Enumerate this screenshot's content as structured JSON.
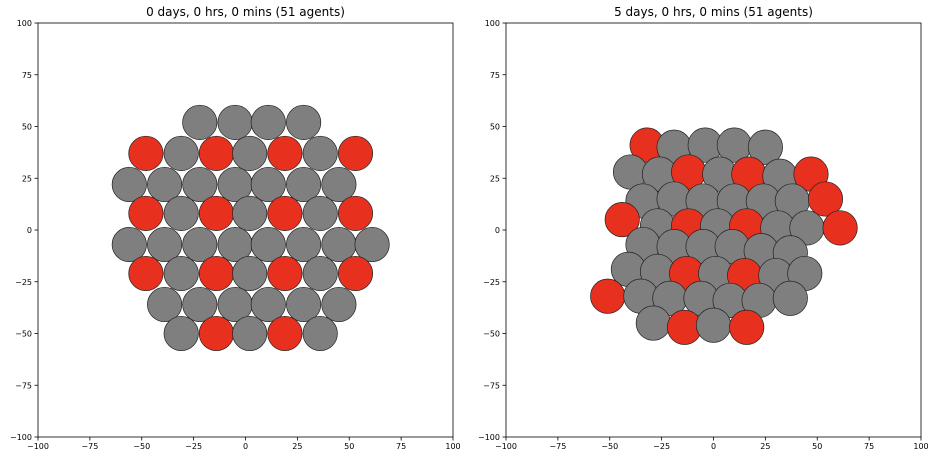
{
  "figure": {
    "colors": {
      "healthy": "#7f7f7f",
      "infected": "#e8301f",
      "edge": "#222222"
    }
  },
  "chart_data": [
    {
      "type": "scatter",
      "title": "0 days, 0 hrs, 0 mins (51 agents)",
      "xlim": [
        -100,
        100
      ],
      "ylim": [
        -100,
        100
      ],
      "xticks": [
        -100,
        -75,
        -50,
        -25,
        0,
        25,
        50,
        75,
        100
      ],
      "yticks": [
        -100,
        -75,
        -50,
        -25,
        0,
        25,
        50,
        75,
        100
      ],
      "xtick_labels": [
        "−100",
        "−75",
        "−50",
        "−25",
        "0",
        "25",
        "50",
        "75",
        "100"
      ],
      "ytick_labels": [
        "−100",
        "−75",
        "−50",
        "−25",
        "0",
        "25",
        "50",
        "75",
        "100"
      ],
      "grid": false,
      "marker_radius": 8.3,
      "points": [
        {
          "x": -22,
          "y": 52,
          "state": "healthy"
        },
        {
          "x": -5,
          "y": 52,
          "state": "healthy"
        },
        {
          "x": 11,
          "y": 52,
          "state": "healthy"
        },
        {
          "x": 28,
          "y": 52,
          "state": "healthy"
        },
        {
          "x": -48,
          "y": 37,
          "state": "infected"
        },
        {
          "x": -31,
          "y": 37,
          "state": "healthy"
        },
        {
          "x": -14,
          "y": 37,
          "state": "infected"
        },
        {
          "x": 2,
          "y": 37,
          "state": "healthy"
        },
        {
          "x": 19,
          "y": 37,
          "state": "infected"
        },
        {
          "x": 36,
          "y": 37,
          "state": "healthy"
        },
        {
          "x": 53,
          "y": 37,
          "state": "infected"
        },
        {
          "x": -56,
          "y": 22,
          "state": "healthy"
        },
        {
          "x": -39,
          "y": 22,
          "state": "healthy"
        },
        {
          "x": -22,
          "y": 22,
          "state": "healthy"
        },
        {
          "x": -5,
          "y": 22,
          "state": "healthy"
        },
        {
          "x": 11,
          "y": 22,
          "state": "healthy"
        },
        {
          "x": 28,
          "y": 22,
          "state": "healthy"
        },
        {
          "x": 45,
          "y": 22,
          "state": "healthy"
        },
        {
          "x": -48,
          "y": 8,
          "state": "infected"
        },
        {
          "x": -31,
          "y": 8,
          "state": "healthy"
        },
        {
          "x": -14,
          "y": 8,
          "state": "infected"
        },
        {
          "x": 2,
          "y": 8,
          "state": "healthy"
        },
        {
          "x": 19,
          "y": 8,
          "state": "infected"
        },
        {
          "x": 36,
          "y": 8,
          "state": "healthy"
        },
        {
          "x": 53,
          "y": 8,
          "state": "infected"
        },
        {
          "x": -56,
          "y": -7,
          "state": "healthy"
        },
        {
          "x": -39,
          "y": -7,
          "state": "healthy"
        },
        {
          "x": -22,
          "y": -7,
          "state": "healthy"
        },
        {
          "x": -5,
          "y": -7,
          "state": "healthy"
        },
        {
          "x": 11,
          "y": -7,
          "state": "healthy"
        },
        {
          "x": 28,
          "y": -7,
          "state": "healthy"
        },
        {
          "x": 45,
          "y": -7,
          "state": "healthy"
        },
        {
          "x": 61,
          "y": -7,
          "state": "healthy"
        },
        {
          "x": -48,
          "y": -21,
          "state": "infected"
        },
        {
          "x": -31,
          "y": -21,
          "state": "healthy"
        },
        {
          "x": -14,
          "y": -21,
          "state": "infected"
        },
        {
          "x": 2,
          "y": -21,
          "state": "healthy"
        },
        {
          "x": 19,
          "y": -21,
          "state": "infected"
        },
        {
          "x": 36,
          "y": -21,
          "state": "healthy"
        },
        {
          "x": 53,
          "y": -21,
          "state": "infected"
        },
        {
          "x": -39,
          "y": -36,
          "state": "healthy"
        },
        {
          "x": -22,
          "y": -36,
          "state": "healthy"
        },
        {
          "x": -5,
          "y": -36,
          "state": "healthy"
        },
        {
          "x": 11,
          "y": -36,
          "state": "healthy"
        },
        {
          "x": 28,
          "y": -36,
          "state": "healthy"
        },
        {
          "x": 45,
          "y": -36,
          "state": "healthy"
        },
        {
          "x": -31,
          "y": -50,
          "state": "healthy"
        },
        {
          "x": -14,
          "y": -50,
          "state": "infected"
        },
        {
          "x": 2,
          "y": -50,
          "state": "healthy"
        },
        {
          "x": 19,
          "y": -50,
          "state": "infected"
        },
        {
          "x": 36,
          "y": -50,
          "state": "healthy"
        }
      ]
    },
    {
      "type": "scatter",
      "title": "5 days, 0 hrs, 0 mins (51 agents)",
      "xlim": [
        -100,
        100
      ],
      "ylim": [
        -100,
        100
      ],
      "xticks": [
        -100,
        -75,
        -50,
        -25,
        0,
        25,
        50,
        75,
        100
      ],
      "yticks": [
        -100,
        -75,
        -50,
        -25,
        0,
        25,
        50,
        75,
        100
      ],
      "xtick_labels": [
        "−100",
        "−75",
        "−50",
        "−25",
        "0",
        "25",
        "50",
        "75",
        "100"
      ],
      "ytick_labels": [
        "−100",
        "−75",
        "−50",
        "−25",
        "0",
        "25",
        "50",
        "75",
        "100"
      ],
      "grid": false,
      "marker_radius": 8.3,
      "points": [
        {
          "x": -32,
          "y": 41,
          "state": "infected"
        },
        {
          "x": -19,
          "y": 40,
          "state": "healthy"
        },
        {
          "x": -4,
          "y": 41,
          "state": "healthy"
        },
        {
          "x": 10,
          "y": 41,
          "state": "healthy"
        },
        {
          "x": 25,
          "y": 40,
          "state": "healthy"
        },
        {
          "x": -40,
          "y": 28,
          "state": "healthy"
        },
        {
          "x": -26,
          "y": 27,
          "state": "healthy"
        },
        {
          "x": -12,
          "y": 28,
          "state": "infected"
        },
        {
          "x": 3,
          "y": 27,
          "state": "healthy"
        },
        {
          "x": 17,
          "y": 27,
          "state": "infected"
        },
        {
          "x": 32,
          "y": 26,
          "state": "healthy"
        },
        {
          "x": 47,
          "y": 27,
          "state": "infected"
        },
        {
          "x": -34,
          "y": 14,
          "state": "healthy"
        },
        {
          "x": -19,
          "y": 15,
          "state": "healthy"
        },
        {
          "x": -5,
          "y": 14,
          "state": "healthy"
        },
        {
          "x": 10,
          "y": 14,
          "state": "healthy"
        },
        {
          "x": 24,
          "y": 14,
          "state": "healthy"
        },
        {
          "x": 38,
          "y": 14,
          "state": "healthy"
        },
        {
          "x": 54,
          "y": 15,
          "state": "infected"
        },
        {
          "x": -44,
          "y": 5,
          "state": "infected"
        },
        {
          "x": -27,
          "y": 2,
          "state": "healthy"
        },
        {
          "x": -12,
          "y": 2,
          "state": "infected"
        },
        {
          "x": 2,
          "y": 2,
          "state": "healthy"
        },
        {
          "x": 16,
          "y": 2,
          "state": "infected"
        },
        {
          "x": 31,
          "y": 1,
          "state": "healthy"
        },
        {
          "x": 45,
          "y": 1,
          "state": "healthy"
        },
        {
          "x": 61,
          "y": 1,
          "state": "infected"
        },
        {
          "x": -34,
          "y": -7,
          "state": "healthy"
        },
        {
          "x": -19,
          "y": -8,
          "state": "healthy"
        },
        {
          "x": -5,
          "y": -8,
          "state": "healthy"
        },
        {
          "x": 9,
          "y": -8,
          "state": "healthy"
        },
        {
          "x": 23,
          "y": -10,
          "state": "healthy"
        },
        {
          "x": 37,
          "y": -11,
          "state": "healthy"
        },
        {
          "x": -41,
          "y": -19,
          "state": "healthy"
        },
        {
          "x": -27,
          "y": -20,
          "state": "healthy"
        },
        {
          "x": -13,
          "y": -21,
          "state": "infected"
        },
        {
          "x": 1,
          "y": -21,
          "state": "healthy"
        },
        {
          "x": 15,
          "y": -22,
          "state": "infected"
        },
        {
          "x": 30,
          "y": -22,
          "state": "healthy"
        },
        {
          "x": 44,
          "y": -21,
          "state": "healthy"
        },
        {
          "x": -51,
          "y": -32,
          "state": "infected"
        },
        {
          "x": -35,
          "y": -32,
          "state": "healthy"
        },
        {
          "x": -21,
          "y": -33,
          "state": "healthy"
        },
        {
          "x": -6,
          "y": -33,
          "state": "healthy"
        },
        {
          "x": 8,
          "y": -34,
          "state": "healthy"
        },
        {
          "x": 22,
          "y": -34,
          "state": "healthy"
        },
        {
          "x": 37,
          "y": -33,
          "state": "healthy"
        },
        {
          "x": -29,
          "y": -45,
          "state": "healthy"
        },
        {
          "x": -14,
          "y": -47,
          "state": "infected"
        },
        {
          "x": 0,
          "y": -46,
          "state": "healthy"
        },
        {
          "x": 16,
          "y": -47,
          "state": "infected"
        }
      ]
    }
  ]
}
